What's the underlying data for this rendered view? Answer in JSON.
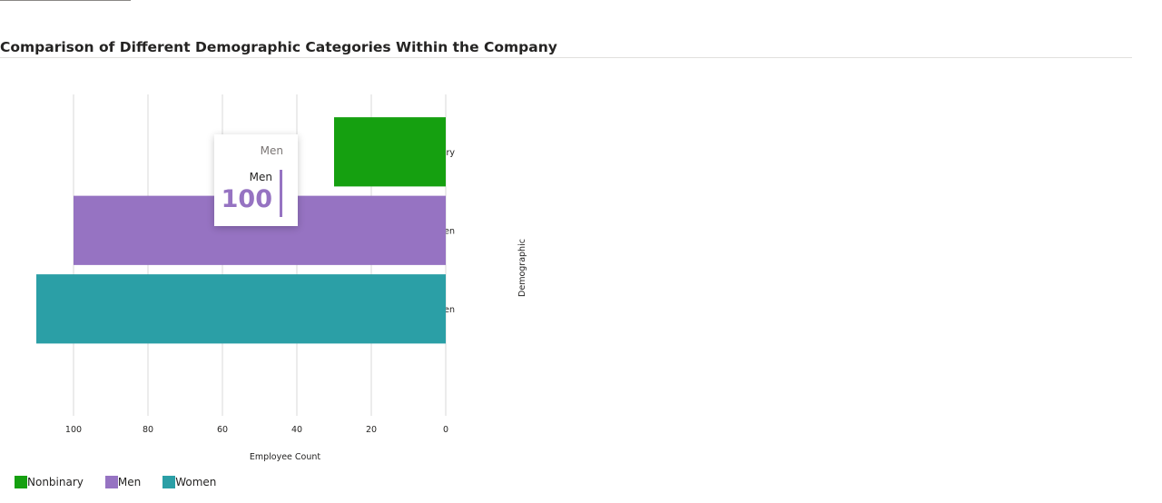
{
  "page": {
    "title": "Comparison of Different Demographic Categories Within the Company"
  },
  "colors": {
    "Nonbinary": "#15a010",
    "Men": "#9673c2",
    "Women": "#2b9fa6",
    "gridline": "#d9d9d9"
  },
  "chart_data": {
    "type": "bar",
    "orientation": "horizontal",
    "title": "Comparison of Different Demographic Categories Within the Company",
    "xlabel": "Employee Count",
    "ylabel": "Demographic",
    "x_reversed": true,
    "xlim": [
      0,
      110
    ],
    "xticks": [
      100,
      80,
      60,
      40,
      20,
      0
    ],
    "categories": [
      "Nonbinary",
      "Men",
      "Women"
    ],
    "values": [
      30,
      100,
      110
    ],
    "grid": true,
    "legend_position": "bottom-left"
  },
  "legend": {
    "items": [
      "Nonbinary",
      "Men",
      "Women"
    ]
  },
  "tooltip": {
    "header": "Men",
    "series": "Men",
    "value": "100"
  }
}
